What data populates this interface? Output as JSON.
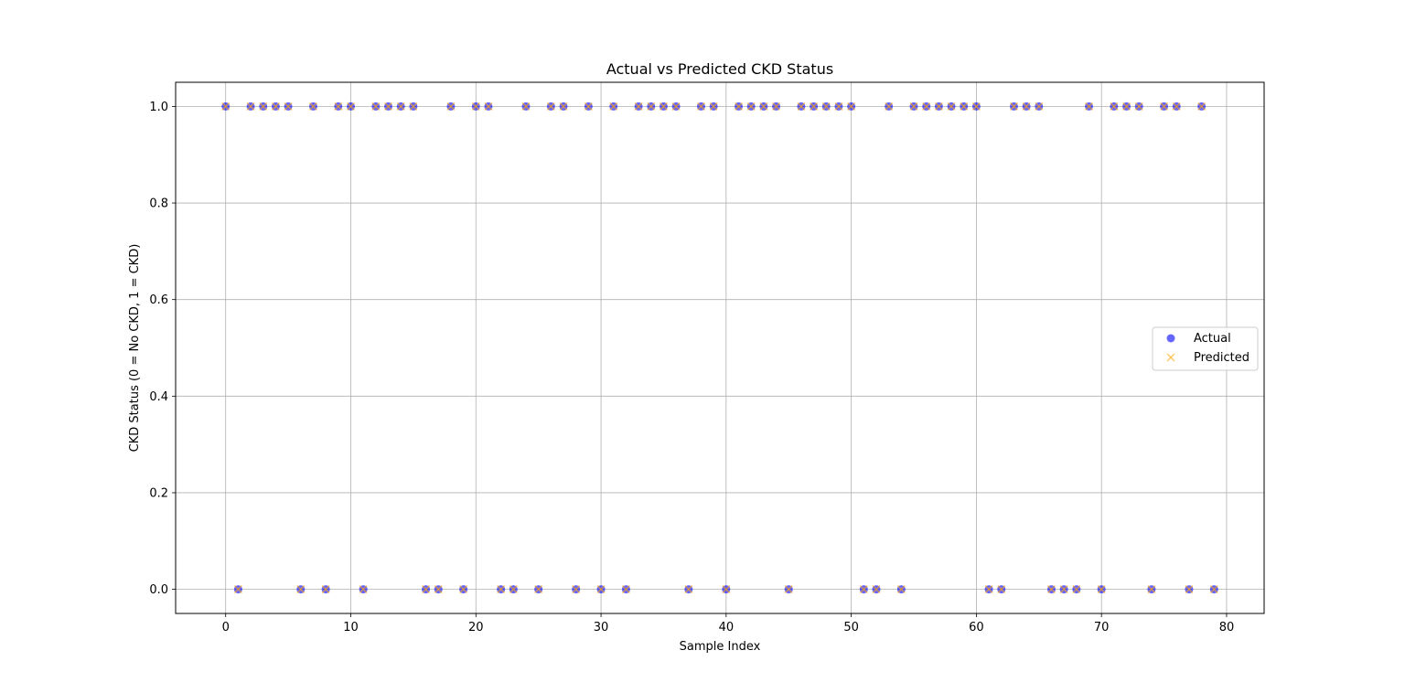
{
  "chart_data": {
    "type": "scatter",
    "title": "Actual vs Predicted CKD Status",
    "xlabel": "Sample Index",
    "ylabel": "CKD Status (0 = No CKD, 1 = CKD)",
    "xlim": [
      -4,
      83
    ],
    "ylim": [
      -0.05,
      1.05
    ],
    "xticks": [
      0,
      10,
      20,
      30,
      40,
      50,
      60,
      70,
      80
    ],
    "yticks": [
      0.0,
      0.2,
      0.4,
      0.6,
      0.8,
      1.0
    ],
    "xtick_labels": [
      "0",
      "10",
      "20",
      "30",
      "40",
      "50",
      "60",
      "70",
      "80"
    ],
    "ytick_labels": [
      "0.0",
      "0.2",
      "0.4",
      "0.6",
      "0.8",
      "1.0"
    ],
    "grid": true,
    "legend_position": "center-right",
    "x": [
      0,
      1,
      2,
      3,
      4,
      5,
      6,
      7,
      8,
      9,
      10,
      11,
      12,
      13,
      14,
      15,
      16,
      17,
      18,
      19,
      20,
      21,
      22,
      23,
      24,
      25,
      26,
      27,
      28,
      29,
      30,
      31,
      32,
      33,
      34,
      35,
      36,
      37,
      38,
      39,
      40,
      41,
      42,
      43,
      44,
      45,
      46,
      47,
      48,
      49,
      50,
      51,
      52,
      53,
      54,
      55,
      56,
      57,
      58,
      59,
      60,
      61,
      62,
      63,
      64,
      65,
      66,
      67,
      68,
      69,
      70,
      71,
      72,
      73,
      74,
      75,
      76,
      77,
      78,
      79
    ],
    "series": [
      {
        "name": "Actual",
        "marker": "circle",
        "color": "#0000ff",
        "values": [
          1,
          0,
          1,
          1,
          1,
          1,
          0,
          1,
          0,
          1,
          1,
          0,
          1,
          1,
          1,
          1,
          0,
          0,
          1,
          0,
          1,
          1,
          0,
          0,
          1,
          0,
          1,
          1,
          0,
          1,
          0,
          1,
          0,
          1,
          1,
          1,
          1,
          0,
          1,
          1,
          0,
          1,
          1,
          1,
          1,
          0,
          1,
          1,
          1,
          1,
          1,
          0,
          0,
          1,
          0,
          1,
          1,
          1,
          1,
          1,
          1,
          0,
          0,
          1,
          1,
          1,
          0,
          0,
          0,
          1,
          0,
          1,
          1,
          1,
          0,
          1,
          1,
          0,
          1,
          0
        ]
      },
      {
        "name": "Predicted",
        "marker": "x",
        "color": "#ffa500",
        "values": [
          1,
          0,
          1,
          1,
          1,
          1,
          0,
          1,
          0,
          1,
          1,
          0,
          1,
          1,
          1,
          1,
          0,
          0,
          1,
          0,
          1,
          1,
          0,
          0,
          1,
          0,
          1,
          1,
          0,
          1,
          0,
          1,
          0,
          1,
          1,
          1,
          1,
          0,
          1,
          1,
          0,
          1,
          1,
          1,
          1,
          0,
          1,
          1,
          1,
          1,
          1,
          0,
          0,
          1,
          0,
          1,
          1,
          1,
          1,
          1,
          1,
          0,
          0,
          1,
          1,
          1,
          0,
          0,
          0,
          1,
          0,
          1,
          1,
          1,
          0,
          1,
          1,
          0,
          1,
          0
        ]
      }
    ]
  }
}
